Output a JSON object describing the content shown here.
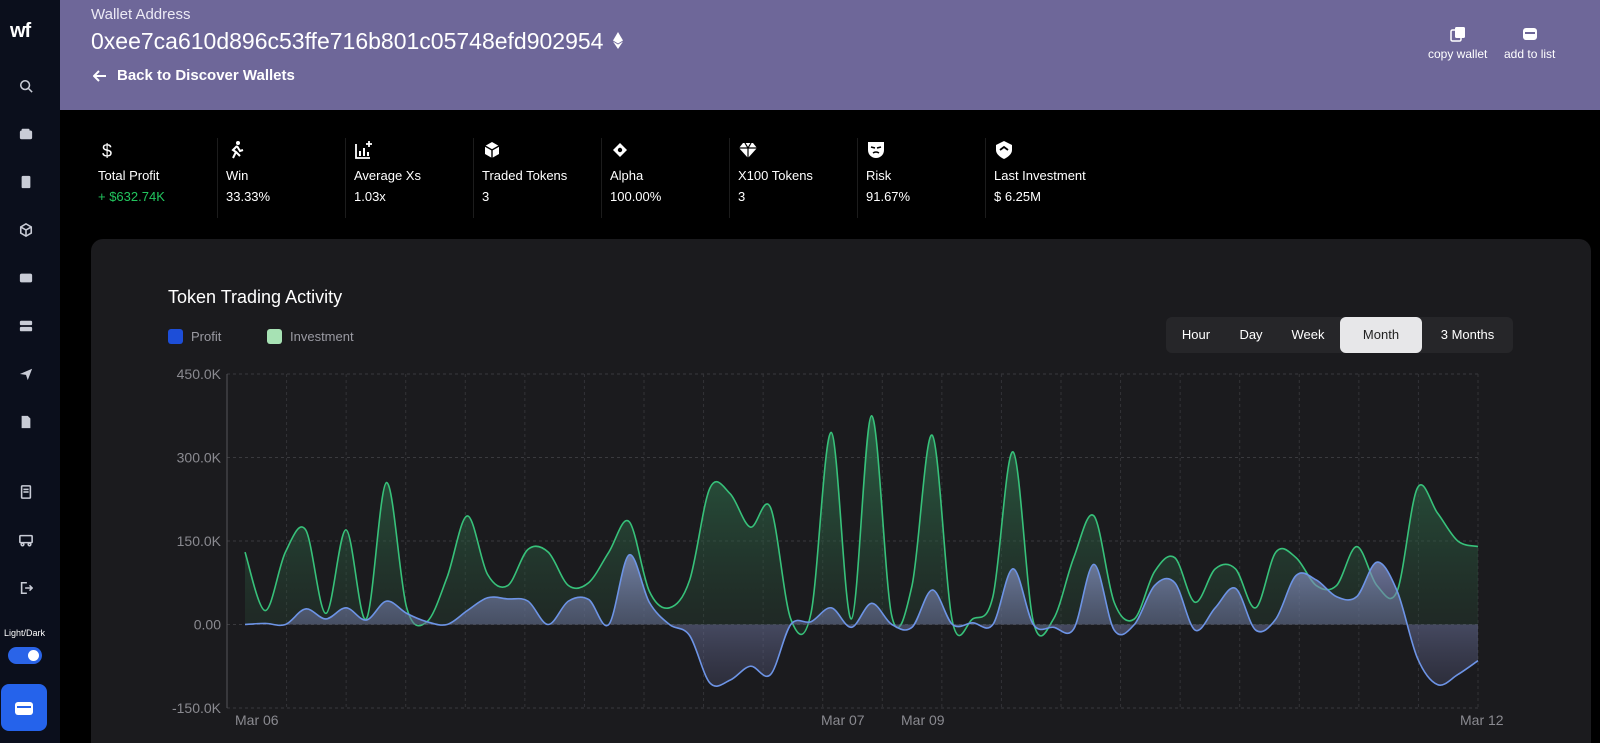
{
  "sidebar": {
    "logo": "wf",
    "icons": [
      "search-icon",
      "wallet-icon",
      "device-icon",
      "cube-icon",
      "card-icon",
      "server-icon",
      "send-icon",
      "file-icon",
      "receipt-icon",
      "truck-icon",
      "logout-icon"
    ],
    "theme_label": "Light/Dark"
  },
  "header": {
    "wallet_label": "Wallet Address",
    "wallet_address": "0xee7ca610d896c53ffe716b801c05748efd902954",
    "back_label": "Back to Discover Wallets",
    "copy_label": "copy wallet",
    "add_label": "add to list"
  },
  "stats": [
    {
      "icon": "dollar-icon",
      "label": "Total Profit",
      "value": "+ $632.74K",
      "color": "#22c55e"
    },
    {
      "icon": "runner-icon",
      "label": "Win",
      "value": "33.33%"
    },
    {
      "icon": "chart-plus-icon",
      "label": "Average Xs",
      "value": "1.03x"
    },
    {
      "icon": "cube-icon",
      "label": "Traded Tokens",
      "value": "3"
    },
    {
      "icon": "diamond-dot-icon",
      "label": "Alpha",
      "value": "100.00%"
    },
    {
      "icon": "gem-icon",
      "label": "X100 Tokens",
      "value": "3"
    },
    {
      "icon": "mask-icon",
      "label": "Risk",
      "value": "91.67%"
    },
    {
      "icon": "shield-icon",
      "label": "Last Investment",
      "value": "$ 6.25M"
    }
  ],
  "chart_panel": {
    "title": "Token Trading Activity",
    "ranges": [
      "Hour",
      "Day",
      "Week",
      "Month",
      "3 Months"
    ],
    "active_range": "Month"
  },
  "chart_data": {
    "type": "area",
    "title": "Token Trading Activity",
    "x_tick_labels": [
      "Mar 06",
      "Mar 07",
      "Mar 09",
      "Mar 12"
    ],
    "y_tick_labels": [
      "450.0K",
      "300.0K",
      "150.0K",
      "0.00",
      "-150.0K"
    ],
    "ylim": [
      -150000,
      450000
    ],
    "grid": true,
    "legend": "top-left",
    "x": [
      0,
      1,
      2,
      3,
      4,
      5,
      6,
      7,
      8,
      9,
      10,
      11,
      12,
      13,
      14,
      15,
      16,
      17,
      18,
      19,
      20,
      21,
      22,
      23,
      24,
      25,
      26,
      27,
      28,
      29,
      30,
      31,
      32,
      33,
      34,
      35,
      36,
      37,
      38,
      39,
      40,
      41,
      42,
      43,
      44,
      45,
      46,
      47,
      48,
      49,
      50,
      51,
      52,
      53,
      54,
      55,
      56,
      57,
      58,
      59,
      60,
      61
    ],
    "series": [
      {
        "name": "Profit",
        "color": "#6d94e6",
        "values": [
          0,
          2000,
          0,
          28000,
          10000,
          30000,
          8000,
          42000,
          20000,
          5000,
          0,
          25000,
          48000,
          46000,
          42000,
          0,
          42000,
          45000,
          0,
          125000,
          40000,
          0,
          -20000,
          -105000,
          -100000,
          -75000,
          -90000,
          0,
          5000,
          30000,
          -5000,
          38000,
          0,
          -5000,
          62000,
          0,
          3000,
          0,
          100000,
          0,
          -5000,
          -8000,
          108000,
          -10000,
          0,
          70000,
          75000,
          -10000,
          30000,
          65000,
          -10000,
          10000,
          88000,
          80000,
          50000,
          50000,
          112000,
          60000,
          -60000,
          -108000,
          -90000,
          -65000
        ]
      },
      {
        "name": "Investment",
        "color": "#37c17a",
        "values": [
          130000,
          25000,
          130000,
          170000,
          20000,
          170000,
          10000,
          255000,
          30000,
          5000,
          85000,
          195000,
          90000,
          70000,
          135000,
          130000,
          70000,
          75000,
          130000,
          185000,
          60000,
          30000,
          80000,
          245000,
          235000,
          175000,
          210000,
          10000,
          20000,
          345000,
          10000,
          375000,
          15000,
          70000,
          340000,
          5000,
          10000,
          50000,
          310000,
          5000,
          10000,
          120000,
          195000,
          40000,
          10000,
          95000,
          120000,
          40000,
          100000,
          100000,
          30000,
          130000,
          120000,
          70000,
          70000,
          140000,
          70000,
          60000,
          245000,
          200000,
          150000,
          140000
        ]
      }
    ]
  }
}
